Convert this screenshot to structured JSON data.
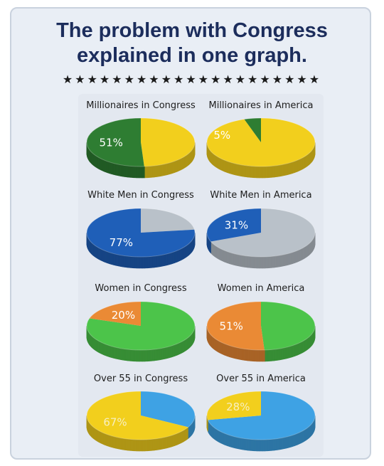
{
  "title_line1": "The problem with Congress",
  "title_line2": "explained in one graph.",
  "stars": "★★★★★★★★★★★★★★★★★★★★★",
  "chart_data": [
    {
      "type": "pie",
      "title": "Millionaires in Congress",
      "percent": 51,
      "label": "51%",
      "highlight_color": "#2e7d32",
      "other_color": "#f2cf1d"
    },
    {
      "type": "pie",
      "title": "Millionaires in America",
      "percent": 5,
      "label": "5%",
      "highlight_color": "#2e7d32",
      "other_color": "#f2cf1d"
    },
    {
      "type": "pie",
      "title": "White Men in Congress",
      "percent": 77,
      "label": "77%",
      "highlight_color": "#1f5fb8",
      "other_color": "#b9c1c9"
    },
    {
      "type": "pie",
      "title": "White Men in America",
      "percent": 31,
      "label": "31%",
      "highlight_color": "#1f5fb8",
      "other_color": "#b9c1c9"
    },
    {
      "type": "pie",
      "title": "Women in Congress",
      "percent": 20,
      "label": "20%",
      "highlight_color": "#ea8a35",
      "other_color": "#4cc44a"
    },
    {
      "type": "pie",
      "title": "Women in America",
      "percent": 51,
      "label": "51%",
      "highlight_color": "#ea8a35",
      "other_color": "#4cc44a"
    },
    {
      "type": "pie",
      "title": "Over 55 in Congress",
      "percent": 67,
      "label": "67%",
      "highlight_color": "#f2cf1d",
      "other_color": "#3ea2e4"
    },
    {
      "type": "pie",
      "title": "Over 55 in America",
      "percent": 28,
      "label": "28%",
      "highlight_color": "#f2cf1d",
      "other_color": "#3ea2e4"
    }
  ]
}
